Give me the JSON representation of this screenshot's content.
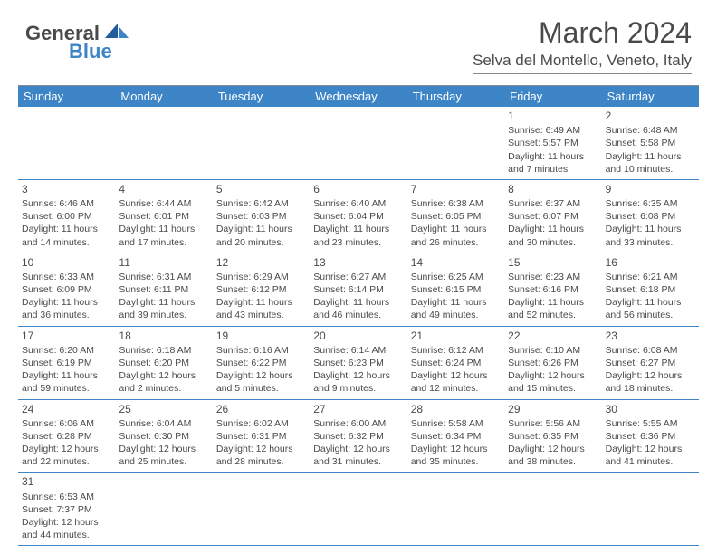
{
  "logo": {
    "text1": "General",
    "text2": "Blue"
  },
  "title": "March 2024",
  "location": "Selva del Montello, Veneto, Italy",
  "colors": {
    "header_bg": "#3d85c6",
    "header_text": "#ffffff",
    "body_text": "#4a4a4a",
    "border": "#3d85c6",
    "background": "#ffffff"
  },
  "day_names": [
    "Sunday",
    "Monday",
    "Tuesday",
    "Wednesday",
    "Thursday",
    "Friday",
    "Saturday"
  ],
  "weeks": [
    [
      null,
      null,
      null,
      null,
      null,
      {
        "n": "1",
        "sunrise": "6:49 AM",
        "sunset": "5:57 PM",
        "daylight": "11 hours and 7 minutes."
      },
      {
        "n": "2",
        "sunrise": "6:48 AM",
        "sunset": "5:58 PM",
        "daylight": "11 hours and 10 minutes."
      }
    ],
    [
      {
        "n": "3",
        "sunrise": "6:46 AM",
        "sunset": "6:00 PM",
        "daylight": "11 hours and 14 minutes."
      },
      {
        "n": "4",
        "sunrise": "6:44 AM",
        "sunset": "6:01 PM",
        "daylight": "11 hours and 17 minutes."
      },
      {
        "n": "5",
        "sunrise": "6:42 AM",
        "sunset": "6:03 PM",
        "daylight": "11 hours and 20 minutes."
      },
      {
        "n": "6",
        "sunrise": "6:40 AM",
        "sunset": "6:04 PM",
        "daylight": "11 hours and 23 minutes."
      },
      {
        "n": "7",
        "sunrise": "6:38 AM",
        "sunset": "6:05 PM",
        "daylight": "11 hours and 26 minutes."
      },
      {
        "n": "8",
        "sunrise": "6:37 AM",
        "sunset": "6:07 PM",
        "daylight": "11 hours and 30 minutes."
      },
      {
        "n": "9",
        "sunrise": "6:35 AM",
        "sunset": "6:08 PM",
        "daylight": "11 hours and 33 minutes."
      }
    ],
    [
      {
        "n": "10",
        "sunrise": "6:33 AM",
        "sunset": "6:09 PM",
        "daylight": "11 hours and 36 minutes."
      },
      {
        "n": "11",
        "sunrise": "6:31 AM",
        "sunset": "6:11 PM",
        "daylight": "11 hours and 39 minutes."
      },
      {
        "n": "12",
        "sunrise": "6:29 AM",
        "sunset": "6:12 PM",
        "daylight": "11 hours and 43 minutes."
      },
      {
        "n": "13",
        "sunrise": "6:27 AM",
        "sunset": "6:14 PM",
        "daylight": "11 hours and 46 minutes."
      },
      {
        "n": "14",
        "sunrise": "6:25 AM",
        "sunset": "6:15 PM",
        "daylight": "11 hours and 49 minutes."
      },
      {
        "n": "15",
        "sunrise": "6:23 AM",
        "sunset": "6:16 PM",
        "daylight": "11 hours and 52 minutes."
      },
      {
        "n": "16",
        "sunrise": "6:21 AM",
        "sunset": "6:18 PM",
        "daylight": "11 hours and 56 minutes."
      }
    ],
    [
      {
        "n": "17",
        "sunrise": "6:20 AM",
        "sunset": "6:19 PM",
        "daylight": "11 hours and 59 minutes."
      },
      {
        "n": "18",
        "sunrise": "6:18 AM",
        "sunset": "6:20 PM",
        "daylight": "12 hours and 2 minutes."
      },
      {
        "n": "19",
        "sunrise": "6:16 AM",
        "sunset": "6:22 PM",
        "daylight": "12 hours and 5 minutes."
      },
      {
        "n": "20",
        "sunrise": "6:14 AM",
        "sunset": "6:23 PM",
        "daylight": "12 hours and 9 minutes."
      },
      {
        "n": "21",
        "sunrise": "6:12 AM",
        "sunset": "6:24 PM",
        "daylight": "12 hours and 12 minutes."
      },
      {
        "n": "22",
        "sunrise": "6:10 AM",
        "sunset": "6:26 PM",
        "daylight": "12 hours and 15 minutes."
      },
      {
        "n": "23",
        "sunrise": "6:08 AM",
        "sunset": "6:27 PM",
        "daylight": "12 hours and 18 minutes."
      }
    ],
    [
      {
        "n": "24",
        "sunrise": "6:06 AM",
        "sunset": "6:28 PM",
        "daylight": "12 hours and 22 minutes."
      },
      {
        "n": "25",
        "sunrise": "6:04 AM",
        "sunset": "6:30 PM",
        "daylight": "12 hours and 25 minutes."
      },
      {
        "n": "26",
        "sunrise": "6:02 AM",
        "sunset": "6:31 PM",
        "daylight": "12 hours and 28 minutes."
      },
      {
        "n": "27",
        "sunrise": "6:00 AM",
        "sunset": "6:32 PM",
        "daylight": "12 hours and 31 minutes."
      },
      {
        "n": "28",
        "sunrise": "5:58 AM",
        "sunset": "6:34 PM",
        "daylight": "12 hours and 35 minutes."
      },
      {
        "n": "29",
        "sunrise": "5:56 AM",
        "sunset": "6:35 PM",
        "daylight": "12 hours and 38 minutes."
      },
      {
        "n": "30",
        "sunrise": "5:55 AM",
        "sunset": "6:36 PM",
        "daylight": "12 hours and 41 minutes."
      }
    ],
    [
      {
        "n": "31",
        "sunrise": "6:53 AM",
        "sunset": "7:37 PM",
        "daylight": "12 hours and 44 minutes."
      },
      null,
      null,
      null,
      null,
      null,
      null
    ]
  ],
  "labels": {
    "sunrise": "Sunrise:",
    "sunset": "Sunset:",
    "daylight": "Daylight:"
  }
}
